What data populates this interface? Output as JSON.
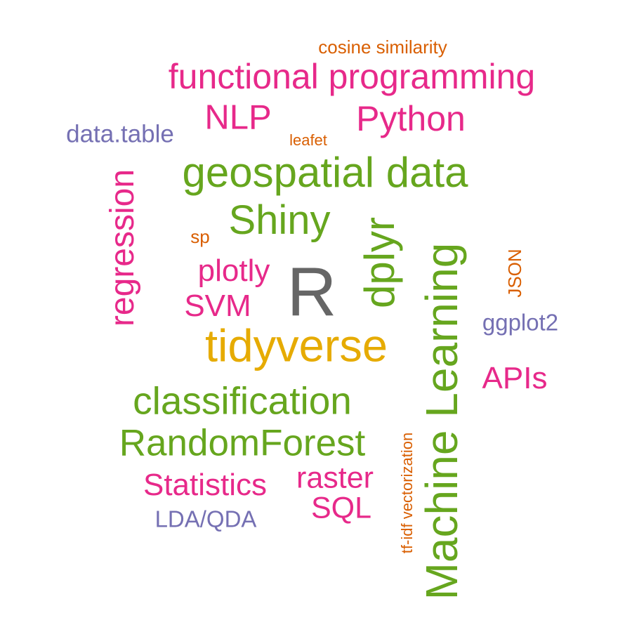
{
  "words": {
    "cosine_similarity": "cosine similarity",
    "functional_programming": "functional programming",
    "nlp": "NLP",
    "python": "Python",
    "data_table": "data.table",
    "leafet": "leafet",
    "geospatial_data": "geospatial data",
    "regression": "regression",
    "shiny": "Shiny",
    "sp": "sp",
    "dplyr": "dplyr",
    "json": "JSON",
    "plotly": "plotly",
    "r": "R",
    "svm": "SVM",
    "ggplot2": "ggplot2",
    "tidyverse": "tidyverse",
    "machine_learning": "Machine Learning",
    "apis": "APIs",
    "classification": "classification",
    "tfidf_vectorization": "tf-idf vectorization",
    "random_forest": "RandomForest",
    "raster": "raster",
    "statistics": "Statistics",
    "sql": "SQL",
    "lda_qda": "LDA/QDA"
  },
  "colors": {
    "orange": "#d95f02",
    "pink": "#e7298a",
    "green": "#66a61e",
    "purple": "#7570b3",
    "gold": "#e6ab02",
    "gray": "#666666",
    "background": "#ffffff"
  }
}
